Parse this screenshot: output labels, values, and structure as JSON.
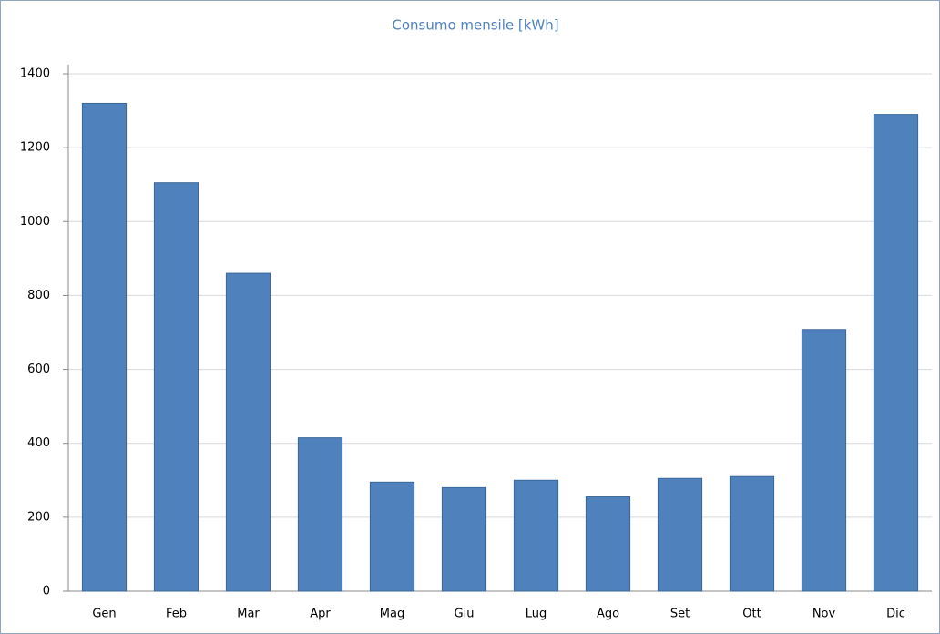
{
  "chart_data": {
    "type": "bar",
    "title": "Consumo mensile [kWh]",
    "categories": [
      "Gen",
      "Feb",
      "Mar",
      "Apr",
      "Mag",
      "Giu",
      "Lug",
      "Ago",
      "Set",
      "Ott",
      "Nov",
      "Dic"
    ],
    "values": [
      1320,
      1105,
      860,
      415,
      295,
      280,
      300,
      255,
      305,
      310,
      708,
      1290
    ],
    "color": "#4f81bd",
    "ylim": [
      0,
      1400
    ],
    "yticks": [
      0,
      200,
      400,
      600,
      800,
      1000,
      1200,
      1400
    ],
    "grid": true
  }
}
